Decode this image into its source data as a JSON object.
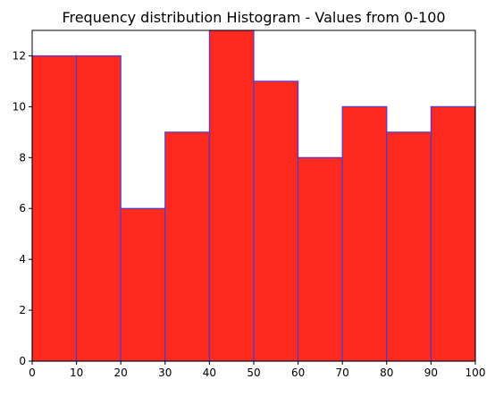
{
  "chart_data": {
    "type": "bar",
    "title": "Frequency distribution Histogram - Values from 0-100",
    "xlabel": "",
    "ylabel": "",
    "bins": [
      {
        "x0": 0,
        "x1": 10,
        "value": 12
      },
      {
        "x0": 10,
        "x1": 20,
        "value": 12
      },
      {
        "x0": 20,
        "x1": 30,
        "value": 6
      },
      {
        "x0": 30,
        "x1": 40,
        "value": 9
      },
      {
        "x0": 40,
        "x1": 50,
        "value": 13
      },
      {
        "x0": 50,
        "x1": 60,
        "value": 11
      },
      {
        "x0": 60,
        "x1": 70,
        "value": 8
      },
      {
        "x0": 70,
        "x1": 80,
        "value": 10
      },
      {
        "x0": 80,
        "x1": 90,
        "value": 9
      },
      {
        "x0": 90,
        "x1": 100,
        "value": 10
      }
    ],
    "xlim": [
      0,
      100
    ],
    "ylim": [
      0,
      13
    ],
    "xticks": [
      0,
      10,
      20,
      30,
      40,
      50,
      60,
      70,
      80,
      90,
      100
    ],
    "yticks": [
      0,
      2,
      4,
      6,
      8,
      10,
      12
    ],
    "grid": false,
    "colors": {
      "bar_fill": "#ff2a1f",
      "bar_edge": "#4b3bd0",
      "axis": "#000000"
    }
  }
}
